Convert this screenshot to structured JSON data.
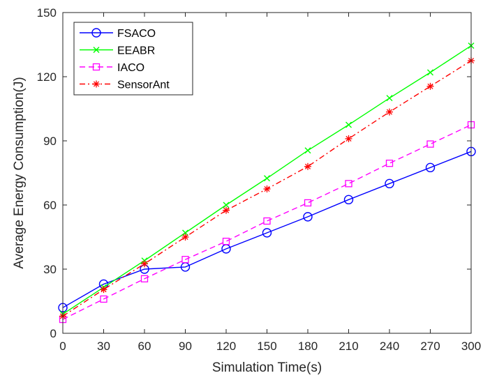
{
  "chart_data": {
    "type": "line",
    "title": "",
    "xlabel": "Simulation Time(s)",
    "ylabel": "Average Energy Consumption(J)",
    "xlim": [
      0,
      300
    ],
    "ylim": [
      0,
      150
    ],
    "xticks": [
      0,
      30,
      60,
      90,
      120,
      150,
      180,
      210,
      240,
      270,
      300
    ],
    "yticks": [
      0,
      30,
      60,
      90,
      120,
      150
    ],
    "grid": false,
    "legend_position": "top-left",
    "x": [
      0,
      30,
      60,
      90,
      120,
      150,
      180,
      210,
      240,
      270,
      300
    ],
    "series": [
      {
        "name": "FSACO",
        "color": "#0000ff",
        "line_style": "solid",
        "marker": "circle",
        "values": [
          12,
          23,
          30,
          31,
          39.5,
          47,
          54.5,
          62.5,
          70,
          77.5,
          85
        ]
      },
      {
        "name": "EEABR",
        "color": "#00ff00",
        "line_style": "solid",
        "marker": "x",
        "values": [
          9,
          21.5,
          34,
          47,
          60,
          72.5,
          85.5,
          97.5,
          110,
          122,
          134.5
        ]
      },
      {
        "name": "IACO",
        "color": "#ff00ff",
        "line_style": "dashed",
        "marker": "square",
        "values": [
          6.5,
          16,
          25.5,
          34.5,
          43,
          52.5,
          61,
          70,
          79.5,
          88.5,
          97.5
        ]
      },
      {
        "name": "SensorAnt",
        "color": "#ff0000",
        "line_style": "dashdot",
        "marker": "asterisk",
        "values": [
          8,
          20.5,
          32.5,
          45,
          57.5,
          67.5,
          78,
          91,
          103.5,
          115.5,
          127.5
        ]
      }
    ]
  }
}
